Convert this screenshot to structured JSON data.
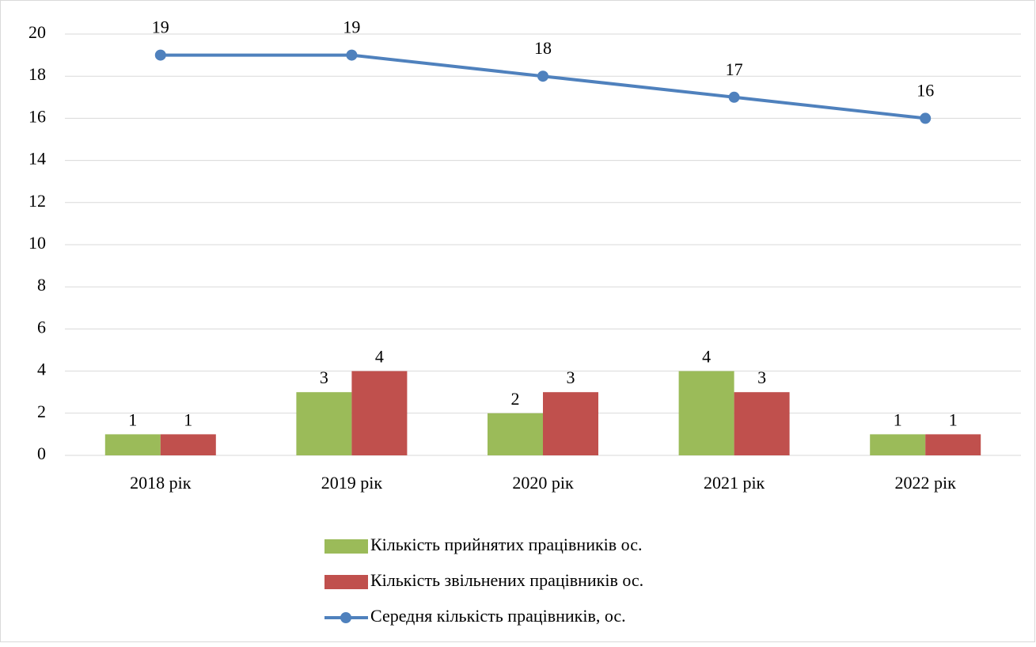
{
  "chart_data": {
    "type": "bar",
    "categories": [
      "2018 рік",
      "2019 рік",
      "2020 рік",
      "2021 рік",
      "2022 рік"
    ],
    "series": [
      {
        "name": "Кількість прийнятих працівників ос.",
        "type": "bar",
        "color": "#9bbb59",
        "values": [
          1,
          3,
          2,
          4,
          1
        ]
      },
      {
        "name": "Кількість звільнених працівників ос.",
        "type": "bar",
        "color": "#c0504d",
        "values": [
          1,
          4,
          3,
          3,
          1
        ]
      },
      {
        "name": "Середня кількість працівників, ос.",
        "type": "line",
        "color": "#4f81bd",
        "values": [
          19,
          19,
          18,
          17,
          16
        ]
      }
    ],
    "ylim": [
      0,
      20
    ],
    "yticks": [
      0,
      2,
      4,
      6,
      8,
      10,
      12,
      14,
      16,
      18,
      20
    ],
    "grid": true,
    "legend": "bottom"
  }
}
